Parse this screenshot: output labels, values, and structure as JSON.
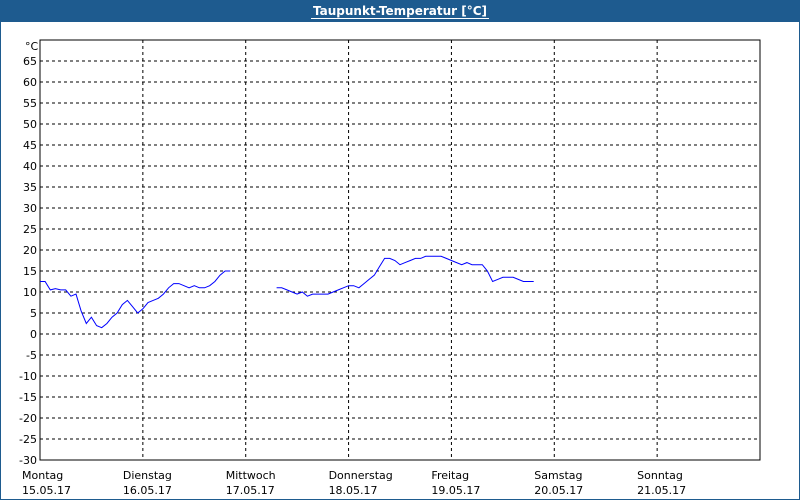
{
  "chart_data": {
    "type": "line",
    "title": "Taupunkt-Temperatur [°C]",
    "ylabel": "°C",
    "ylim": [
      -30,
      70
    ],
    "yticks": [
      65,
      60,
      55,
      50,
      45,
      40,
      35,
      30,
      25,
      20,
      15,
      10,
      5,
      0,
      -5,
      -10,
      -15,
      -20,
      -25,
      -30
    ],
    "xlim": [
      0,
      7
    ],
    "x_unit": "days",
    "grid": true,
    "categories": [
      {
        "day": "Montag",
        "date": "15.05.17"
      },
      {
        "day": "Dienstag",
        "date": "16.05.17"
      },
      {
        "day": "Mittwoch",
        "date": "17.05.17"
      },
      {
        "day": "Donnerstag",
        "date": "18.05.17"
      },
      {
        "day": "Freitag",
        "date": "19.05.17"
      },
      {
        "day": "Samstag",
        "date": "20.05.17"
      },
      {
        "day": "Sonntag",
        "date": "21.05.17"
      }
    ],
    "series": [
      {
        "color": "#0000ff",
        "segments": [
          [
            [
              0.0,
              12.5
            ],
            [
              0.05,
              12.5
            ],
            [
              0.1,
              10.5
            ],
            [
              0.15,
              10.8
            ],
            [
              0.2,
              10.5
            ],
            [
              0.25,
              10.5
            ],
            [
              0.3,
              9.0
            ],
            [
              0.35,
              9.5
            ],
            [
              0.4,
              5.5
            ],
            [
              0.45,
              2.5
            ],
            [
              0.5,
              4.0
            ],
            [
              0.55,
              2.0
            ],
            [
              0.6,
              1.5
            ],
            [
              0.65,
              2.5
            ],
            [
              0.7,
              4.0
            ],
            [
              0.75,
              5.0
            ],
            [
              0.8,
              7.0
            ],
            [
              0.85,
              8.0
            ],
            [
              0.9,
              6.5
            ],
            [
              0.95,
              5.0
            ],
            [
              1.0,
              6.0
            ],
            [
              1.05,
              7.5
            ],
            [
              1.1,
              8.0
            ],
            [
              1.15,
              8.5
            ],
            [
              1.2,
              9.5
            ],
            [
              1.25,
              11.0
            ],
            [
              1.3,
              12.0
            ],
            [
              1.35,
              12.0
            ],
            [
              1.4,
              11.5
            ],
            [
              1.45,
              11.0
            ],
            [
              1.5,
              11.5
            ],
            [
              1.55,
              11.0
            ],
            [
              1.6,
              11.0
            ],
            [
              1.65,
              11.5
            ],
            [
              1.7,
              12.5
            ],
            [
              1.75,
              14.0
            ],
            [
              1.8,
              15.0
            ],
            [
              1.85,
              15.0
            ]
          ],
          [
            [
              2.3,
              11.0
            ],
            [
              2.35,
              11.0
            ],
            [
              2.4,
              10.5
            ],
            [
              2.45,
              10.0
            ],
            [
              2.5,
              9.5
            ],
            [
              2.55,
              10.0
            ],
            [
              2.6,
              9.0
            ],
            [
              2.65,
              9.5
            ],
            [
              2.7,
              9.5
            ],
            [
              2.75,
              9.5
            ],
            [
              2.8,
              9.5
            ],
            [
              2.85,
              10.0
            ],
            [
              2.9,
              10.5
            ],
            [
              2.95,
              11.0
            ],
            [
              3.0,
              11.5
            ],
            [
              3.05,
              11.5
            ],
            [
              3.1,
              11.0
            ],
            [
              3.15,
              12.0
            ],
            [
              3.2,
              13.0
            ],
            [
              3.25,
              14.0
            ],
            [
              3.3,
              16.0
            ],
            [
              3.35,
              18.0
            ],
            [
              3.4,
              18.0
            ],
            [
              3.45,
              17.5
            ],
            [
              3.5,
              16.5
            ],
            [
              3.55,
              17.0
            ],
            [
              3.6,
              17.5
            ],
            [
              3.65,
              18.0
            ],
            [
              3.7,
              18.0
            ],
            [
              3.75,
              18.5
            ],
            [
              3.8,
              18.5
            ],
            [
              3.85,
              18.5
            ],
            [
              3.9,
              18.5
            ],
            [
              3.95,
              18.0
            ],
            [
              4.0,
              17.5
            ],
            [
              4.05,
              17.0
            ],
            [
              4.1,
              16.5
            ],
            [
              4.15,
              17.0
            ],
            [
              4.2,
              16.5
            ],
            [
              4.25,
              16.5
            ],
            [
              4.3,
              16.5
            ],
            [
              4.35,
              15.0
            ],
            [
              4.4,
              12.5
            ],
            [
              4.45,
              13.0
            ],
            [
              4.5,
              13.5
            ],
            [
              4.55,
              13.5
            ],
            [
              4.6,
              13.5
            ],
            [
              4.65,
              13.0
            ],
            [
              4.7,
              12.5
            ],
            [
              4.75,
              12.5
            ],
            [
              4.8,
              12.5
            ]
          ]
        ]
      }
    ]
  }
}
